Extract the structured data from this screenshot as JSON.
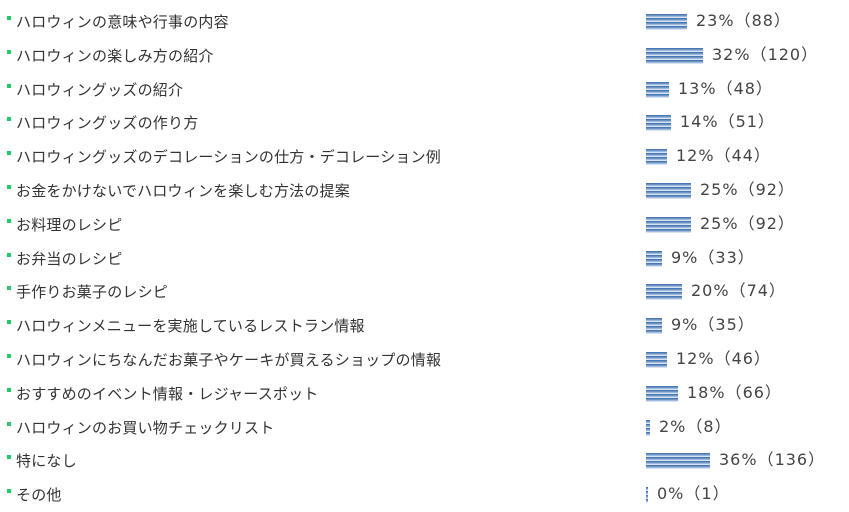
{
  "colors": {
    "bullet": "#22cc66",
    "bar": "#4a78b0",
    "text": "#333333"
  },
  "chart_data": {
    "type": "bar",
    "orientation": "horizontal",
    "categories": [
      "ハロウィンの意味や行事の内容",
      "ハロウィンの楽しみ方の紹介",
      "ハロウィングッズの紹介",
      "ハロウィングッズの作り方",
      "ハロウィングッズのデコレーションの仕方・デコレーション例",
      "お金をかけないでハロウィンを楽しむ方法の提案",
      "お料理のレシピ",
      "お弁当のレシピ",
      "手作りお菓子のレシピ",
      "ハロウィンメニューを実施しているレストラン情報",
      "ハロウィンにちなんだお菓子やケーキが買えるショップの情報",
      "おすすめのイベント情報・レジャースポット",
      "ハロウィンのお買い物チェックリスト",
      "特になし",
      "その他"
    ],
    "values": [
      23,
      32,
      13,
      14,
      12,
      25,
      25,
      9,
      20,
      9,
      12,
      18,
      2,
      36,
      0
    ],
    "counts": [
      88,
      120,
      48,
      51,
      44,
      92,
      92,
      33,
      74,
      35,
      46,
      66,
      8,
      136,
      1
    ],
    "value_labels": [
      "23%（88）",
      "32%（120）",
      "13%（48）",
      "14%（51）",
      "12%（44）",
      "25%（92）",
      "25%（92）",
      "9%（33）",
      "20%（74）",
      "9%（35）",
      "12%（46）",
      "18%（66）",
      "2%（8）",
      "36%（136）",
      "0%（1）"
    ],
    "unit": "%"
  }
}
